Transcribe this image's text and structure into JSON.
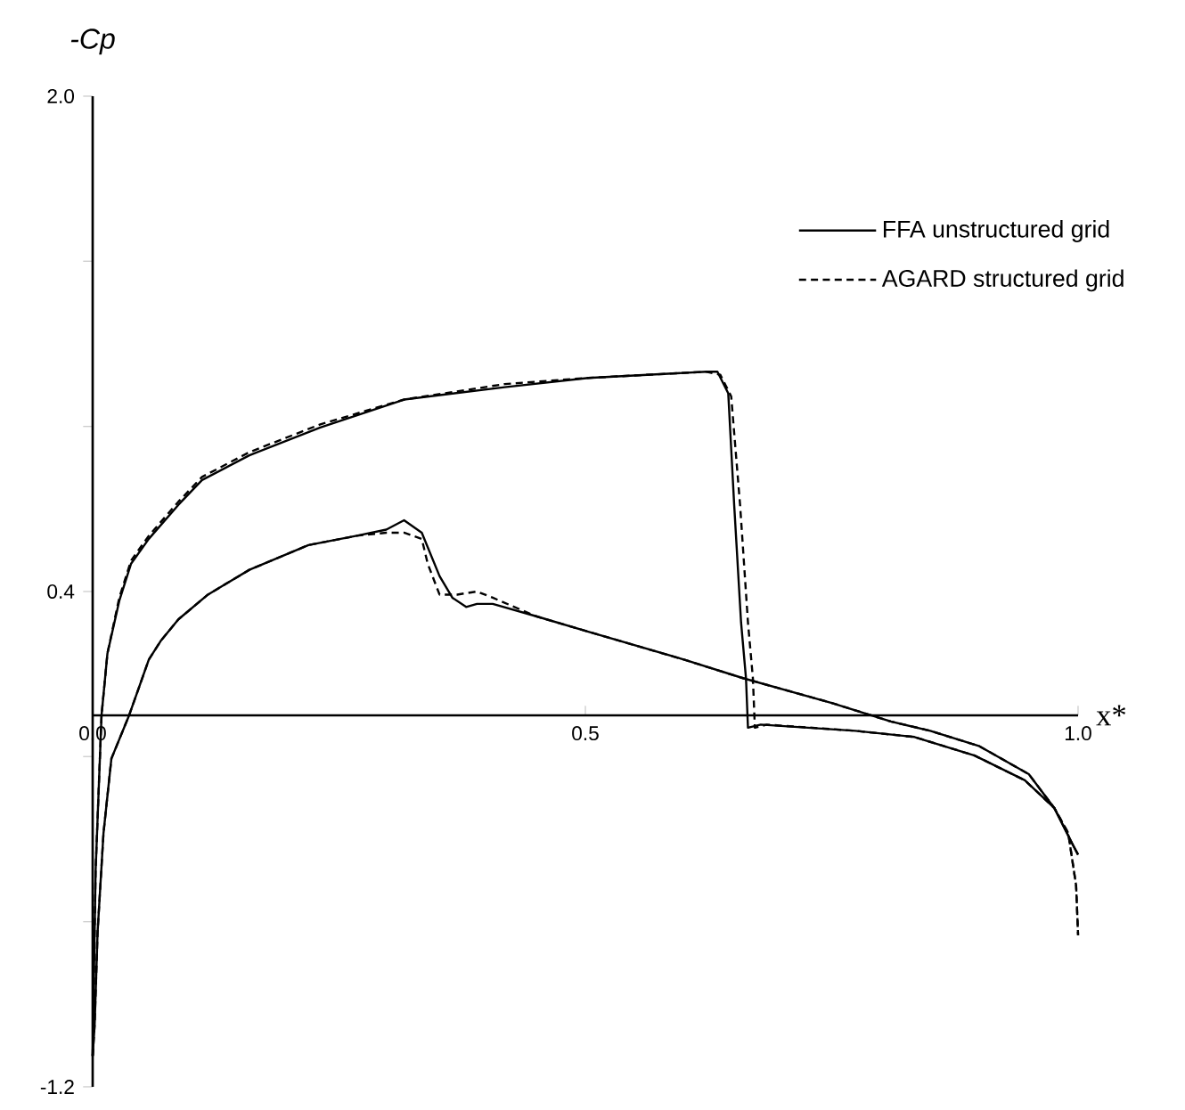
{
  "chart_data": {
    "type": "line",
    "xlabel": "x*",
    "ylabel": "-Cp",
    "xlim": [
      0,
      1.0
    ],
    "ylim": [
      -1.2,
      2.0
    ],
    "xticks": [
      {
        "value": 0,
        "label": "0.0"
      },
      {
        "value": 0.5,
        "label": "0.5"
      },
      {
        "value": 1.0,
        "label": "1.0"
      }
    ],
    "yticks": [
      {
        "value": -1.2,
        "label": "-1.2"
      },
      {
        "value": -0.667,
        "label": null
      },
      {
        "value": -0.133,
        "label": null
      },
      {
        "value": 0.4,
        "label": "0.4"
      },
      {
        "value": 0.933,
        "label": null
      },
      {
        "value": 1.467,
        "label": null
      },
      {
        "value": 2.0,
        "label": "2.0"
      }
    ],
    "legend": "top right",
    "grid": false,
    "marker": "none",
    "series": [
      {
        "name": "FFA unstructured grid",
        "color": "#000000",
        "line_style": "solid",
        "x": [
          0.0,
          0.003,
          0.009,
          0.015,
          0.027,
          0.039,
          0.057,
          0.087,
          0.111,
          0.159,
          0.231,
          0.316,
          0.418,
          0.503,
          0.623,
          0.634,
          0.645,
          0.651,
          0.658,
          0.663,
          0.665,
          0.678,
          0.774,
          0.834,
          0.895,
          0.946,
          0.976,
          0.995,
          1.0
        ],
        "values": [
          -1.1,
          -0.5,
          0.0,
          0.2,
          0.37,
          0.49,
          0.57,
          0.68,
          0.76,
          0.84,
          0.93,
          1.02,
          1.06,
          1.09,
          1.11,
          1.11,
          1.04,
          0.68,
          0.3,
          0.12,
          -0.04,
          -0.03,
          -0.05,
          -0.07,
          -0.13,
          -0.21,
          -0.3,
          -0.42,
          -0.45
        ]
      },
      {
        "name": "AGARD structured grid",
        "color": "#000000",
        "line_style": "dashed",
        "x": [
          0.0,
          0.003,
          0.009,
          0.015,
          0.027,
          0.039,
          0.057,
          0.087,
          0.111,
          0.159,
          0.231,
          0.316,
          0.418,
          0.503,
          0.623,
          0.637,
          0.648,
          0.657,
          0.665,
          0.67,
          0.672,
          0.684,
          0.774,
          0.834,
          0.895,
          0.946,
          0.976,
          0.99,
          0.998,
          1.0
        ],
        "values": [
          -1.1,
          -0.5,
          0.0,
          0.2,
          0.38,
          0.5,
          0.58,
          0.69,
          0.77,
          0.85,
          0.94,
          1.02,
          1.07,
          1.09,
          1.11,
          1.1,
          1.03,
          0.68,
          0.3,
          0.12,
          -0.04,
          -0.03,
          -0.05,
          -0.07,
          -0.13,
          -0.21,
          -0.3,
          -0.38,
          -0.55,
          -0.71
        ]
      },
      {
        "color": "#000000",
        "line_style": "solid",
        "x": [
          0.0,
          0.002,
          0.005,
          0.011,
          0.019,
          0.037,
          0.057,
          0.069,
          0.087,
          0.117,
          0.159,
          0.219,
          0.268,
          0.298,
          0.316,
          0.334,
          0.352,
          0.365,
          0.379,
          0.39,
          0.406,
          0.45,
          0.503,
          0.6,
          0.66,
          0.75,
          0.81,
          0.85,
          0.9,
          0.95,
          0.976,
          0.995,
          1.0
        ],
        "values": [
          -1.1,
          -1.0,
          -0.7,
          -0.38,
          -0.14,
          0.0,
          0.18,
          0.24,
          0.31,
          0.39,
          0.47,
          0.55,
          0.58,
          0.6,
          0.63,
          0.59,
          0.45,
          0.38,
          0.35,
          0.36,
          0.36,
          0.32,
          0.27,
          0.18,
          0.12,
          0.04,
          -0.02,
          -0.05,
          -0.1,
          -0.19,
          -0.3,
          -0.42,
          -0.45
        ]
      },
      {
        "color": "#000000",
        "line_style": "dashed",
        "x": [
          0.0,
          0.002,
          0.005,
          0.011,
          0.019,
          0.037,
          0.057,
          0.069,
          0.087,
          0.117,
          0.159,
          0.219,
          0.268,
          0.298,
          0.316,
          0.334,
          0.34,
          0.352,
          0.37,
          0.39,
          0.406,
          0.45,
          0.503,
          0.6,
          0.66,
          0.75,
          0.81,
          0.85,
          0.9,
          0.95,
          0.976,
          0.99,
          0.998,
          1.0
        ],
        "values": [
          -1.1,
          -1.0,
          -0.7,
          -0.38,
          -0.14,
          0.0,
          0.18,
          0.24,
          0.31,
          0.39,
          0.47,
          0.55,
          0.58,
          0.59,
          0.59,
          0.57,
          0.49,
          0.39,
          0.39,
          0.4,
          0.38,
          0.32,
          0.27,
          0.18,
          0.12,
          0.04,
          -0.02,
          -0.05,
          -0.1,
          -0.19,
          -0.3,
          -0.38,
          -0.55,
          -0.71
        ]
      }
    ]
  }
}
